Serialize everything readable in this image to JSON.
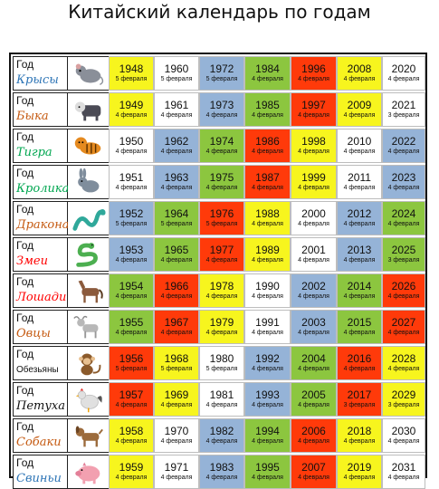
{
  "title": "Китайский календарь по годам",
  "colors": {
    "yellow": "#f7f51e",
    "white": "#ffffff",
    "blue": "#95b3d7",
    "green": "#8cc63f",
    "red": "#ff3a0a"
  },
  "rows": [
    {
      "god": "Год",
      "animal": "Крысы",
      "animal_color": "#2e75b6",
      "icon": "rat-icon",
      "icon_color": "#8a8f99",
      "cells": [
        [
          "1948",
          "5 февраля",
          "yellow"
        ],
        [
          "1960",
          "5 февраля",
          "white"
        ],
        [
          "1972",
          "5 февраля",
          "blue"
        ],
        [
          "1984",
          "4 февраля",
          "green"
        ],
        [
          "1996",
          "4 февраля",
          "red"
        ],
        [
          "2008",
          "4 февраля",
          "yellow"
        ],
        [
          "2020",
          "4 февраля",
          "white"
        ]
      ]
    },
    {
      "god": "Год",
      "animal": "Быка",
      "animal_color": "#c55a11",
      "icon": "ox-icon",
      "icon_color": "#4a4a55",
      "cells": [
        [
          "1949",
          "4 февраля",
          "yellow"
        ],
        [
          "1961",
          "4 февраля",
          "white"
        ],
        [
          "1973",
          "4 февраля",
          "blue"
        ],
        [
          "1985",
          "4 февраля",
          "green"
        ],
        [
          "1997",
          "4 февраля",
          "red"
        ],
        [
          "2009",
          "4 февраля",
          "yellow"
        ],
        [
          "2021",
          "3 февраля",
          "white"
        ]
      ]
    },
    {
      "god": "Год",
      "animal": "Тигра",
      "animal_color": "#00a650",
      "icon": "tiger-icon",
      "icon_color": "#e58a1f",
      "cells": [
        [
          "1950",
          "4 февраля",
          "white"
        ],
        [
          "1962",
          "4 февраля",
          "blue"
        ],
        [
          "1974",
          "4 февраля",
          "green"
        ],
        [
          "1986",
          "4 февраля",
          "red"
        ],
        [
          "1998",
          "4 февраля",
          "yellow"
        ],
        [
          "2010",
          "4 февраля",
          "white"
        ],
        [
          "2022",
          "4 февраля",
          "blue"
        ]
      ]
    },
    {
      "god": "Год",
      "animal": "Кролика",
      "animal_color": "#00a650",
      "icon": "rabbit-icon",
      "icon_color": "#7f8d9c",
      "cells": [
        [
          "1951",
          "4 февраля",
          "white"
        ],
        [
          "1963",
          "4 февраля",
          "blue"
        ],
        [
          "1975",
          "4 февраля",
          "green"
        ],
        [
          "1987",
          "4 февраля",
          "red"
        ],
        [
          "1999",
          "4 февраля",
          "yellow"
        ],
        [
          "2011",
          "4 февраля",
          "white"
        ],
        [
          "2023",
          "4 февраля",
          "blue"
        ]
      ]
    },
    {
      "god": "Год",
      "animal": "Дракона",
      "animal_color": "#c55a11",
      "icon": "dragon-icon",
      "icon_color": "#2fa89a",
      "cells": [
        [
          "1952",
          "5 февраля",
          "blue"
        ],
        [
          "1964",
          "5 февраля",
          "green"
        ],
        [
          "1976",
          "5 февраля",
          "red"
        ],
        [
          "1988",
          "4 февраля",
          "yellow"
        ],
        [
          "2000",
          "4 февраля",
          "white"
        ],
        [
          "2012",
          "4 февраля",
          "blue"
        ],
        [
          "2024",
          "4 февраля",
          "green"
        ]
      ]
    },
    {
      "god": "Год",
      "animal": "Змеи",
      "animal_color": "#ff0000",
      "icon": "snake-icon",
      "icon_color": "#4caf50",
      "cells": [
        [
          "1953",
          "4 февраля",
          "blue"
        ],
        [
          "1965",
          "4 февраля",
          "green"
        ],
        [
          "1977",
          "4 февраля",
          "red"
        ],
        [
          "1989",
          "4 февраля",
          "yellow"
        ],
        [
          "2001",
          "4 февраля",
          "white"
        ],
        [
          "2013",
          "4 февраля",
          "blue"
        ],
        [
          "2025",
          "3 февраля",
          "green"
        ]
      ]
    },
    {
      "god": "Год",
      "animal": "Лошади",
      "animal_color": "#ff0000",
      "icon": "horse-icon",
      "icon_color": "#8b5a3c",
      "cells": [
        [
          "1954",
          "4 февраля",
          "green"
        ],
        [
          "1966",
          "4 февраля",
          "red"
        ],
        [
          "1978",
          "4 февраля",
          "yellow"
        ],
        [
          "1990",
          "4 февраля",
          "white"
        ],
        [
          "2002",
          "4 февраля",
          "blue"
        ],
        [
          "2014",
          "4 февраля",
          "green"
        ],
        [
          "2026",
          "4 февраля",
          "red"
        ]
      ]
    },
    {
      "god": "Год",
      "animal": "Овцы",
      "animal_color": "#c55a11",
      "icon": "goat-icon",
      "icon_color": "#b8b8b8",
      "cells": [
        [
          "1955",
          "4 февраля",
          "green"
        ],
        [
          "1967",
          "4 февраля",
          "red"
        ],
        [
          "1979",
          "4 февраля",
          "yellow"
        ],
        [
          "1991",
          "4 февраля",
          "white"
        ],
        [
          "2003",
          "4 февраля",
          "blue"
        ],
        [
          "2015",
          "4 февраля",
          "green"
        ],
        [
          "2027",
          "4 февраля",
          "red"
        ]
      ]
    },
    {
      "god": "Год",
      "animal": "Обезьяны",
      "animal_color": "#111111",
      "small": true,
      "icon": "monkey-icon",
      "icon_color": "#8b5a2b",
      "cells": [
        [
          "1956",
          "5 февраля",
          "red"
        ],
        [
          "1968",
          "5 февраля",
          "yellow"
        ],
        [
          "1980",
          "5 февраля",
          "white"
        ],
        [
          "1992",
          "4 февраля",
          "blue"
        ],
        [
          "2004",
          "4 февраля",
          "green"
        ],
        [
          "2016",
          "4 февраля",
          "red"
        ],
        [
          "2028",
          "4 февраля",
          "yellow"
        ]
      ]
    },
    {
      "god": "Год",
      "animal": "Петуха",
      "animal_color": "#111111",
      "icon": "rooster-icon",
      "icon_color": "#e0e0e0",
      "cells": [
        [
          "1957",
          "4 февраля",
          "red"
        ],
        [
          "1969",
          "4 февраля",
          "yellow"
        ],
        [
          "1981",
          "4 февраля",
          "white"
        ],
        [
          "1993",
          "4 февраля",
          "blue"
        ],
        [
          "2005",
          "4 февраля",
          "green"
        ],
        [
          "2017",
          "3 февраля",
          "red"
        ],
        [
          "2029",
          "3 февраля",
          "yellow"
        ]
      ]
    },
    {
      "god": "Год",
      "animal": "Собаки",
      "animal_color": "#c55a11",
      "icon": "dog-icon",
      "icon_color": "#9c6b3c",
      "cells": [
        [
          "1958",
          "4 февраля",
          "yellow"
        ],
        [
          "1970",
          "4 февраля",
          "white"
        ],
        [
          "1982",
          "4 февраля",
          "blue"
        ],
        [
          "1994",
          "4 февраля",
          "green"
        ],
        [
          "2006",
          "4 февраля",
          "red"
        ],
        [
          "2018",
          "4 февраля",
          "yellow"
        ],
        [
          "2030",
          "4 февраля",
          "white"
        ]
      ]
    },
    {
      "god": "Год",
      "animal": "Свиньи",
      "animal_color": "#2e75b6",
      "icon": "pig-icon",
      "icon_color": "#f2a0b0",
      "cells": [
        [
          "1959",
          "4 февраля",
          "yellow"
        ],
        [
          "1971",
          "4 февраля",
          "white"
        ],
        [
          "1983",
          "4 февраля",
          "blue"
        ],
        [
          "1995",
          "4 февраля",
          "green"
        ],
        [
          "2007",
          "4 февраля",
          "red"
        ],
        [
          "2019",
          "4 февраля",
          "yellow"
        ],
        [
          "2031",
          "4 февраля",
          "white"
        ]
      ]
    }
  ]
}
